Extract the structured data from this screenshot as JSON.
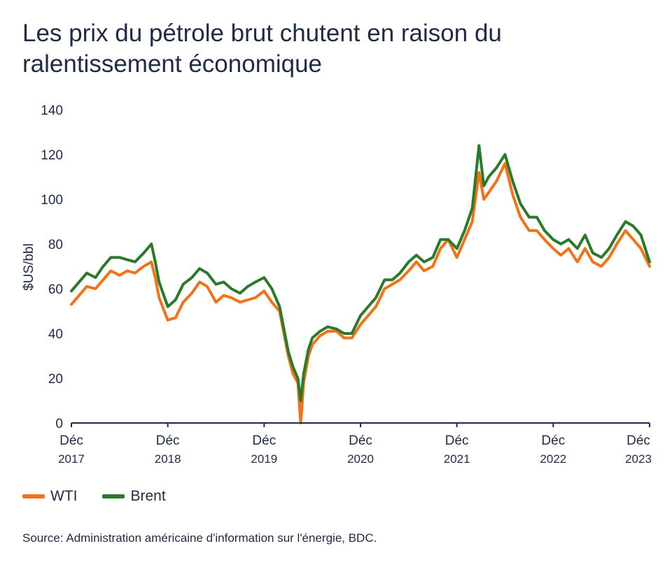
{
  "title": "Les prix du pétrole brut chutent en raison du ralentissement économique",
  "source": "Source: Administration américaine d'information sur l'énergie, BDC.",
  "colors": {
    "wti": "#f47216",
    "brent": "#2b7a2b",
    "axis": "#1f2a44"
  },
  "chart_data": {
    "type": "line",
    "ylabel": "$US/bbl",
    "ylim": [
      0,
      140
    ],
    "yticks": [
      "0",
      "20",
      "40",
      "60",
      "80",
      "100",
      "120",
      "140"
    ],
    "xlim": [
      2017.92,
      2023.92
    ],
    "xticks": [
      {
        "month": "Déc",
        "year": "2017"
      },
      {
        "month": "Déc",
        "year": "2018"
      },
      {
        "month": "Déc",
        "year": "2019"
      },
      {
        "month": "Déc",
        "year": "2020"
      },
      {
        "month": "Déc",
        "year": "2021"
      },
      {
        "month": "Déc",
        "year": "2022"
      },
      {
        "month": "Déc",
        "year": "2023"
      }
    ],
    "legend_position": "bottom-left",
    "series": [
      {
        "name": "WTI",
        "x": [
          2017.92,
          2018.0,
          2018.08,
          2018.17,
          2018.25,
          2018.33,
          2018.42,
          2018.5,
          2018.58,
          2018.67,
          2018.75,
          2018.79,
          2018.83,
          2018.92,
          2019.0,
          2019.08,
          2019.17,
          2019.25,
          2019.33,
          2019.42,
          2019.5,
          2019.58,
          2019.67,
          2019.75,
          2019.83,
          2019.92,
          2020.0,
          2020.08,
          2020.17,
          2020.22,
          2020.27,
          2020.3,
          2020.33,
          2020.38,
          2020.42,
          2020.5,
          2020.58,
          2020.67,
          2020.75,
          2020.83,
          2020.92,
          2021.0,
          2021.08,
          2021.17,
          2021.25,
          2021.33,
          2021.42,
          2021.5,
          2021.58,
          2021.67,
          2021.75,
          2021.83,
          2021.92,
          2022.0,
          2022.08,
          2022.15,
          2022.2,
          2022.25,
          2022.33,
          2022.42,
          2022.5,
          2022.58,
          2022.67,
          2022.75,
          2022.83,
          2022.92,
          2023.0,
          2023.08,
          2023.17,
          2023.25,
          2023.33,
          2023.42,
          2023.5,
          2023.58,
          2023.67,
          2023.75,
          2023.83,
          2023.92
        ],
        "values": [
          53,
          57,
          61,
          60,
          64,
          68,
          66,
          68,
          67,
          70,
          72,
          65,
          56,
          46,
          47,
          54,
          58,
          63,
          61,
          54,
          57,
          56,
          54,
          55,
          56,
          59,
          54,
          50,
          30,
          22,
          18,
          0,
          18,
          30,
          35,
          39,
          41,
          41,
          38,
          38,
          44,
          48,
          52,
          60,
          62,
          64,
          68,
          72,
          68,
          70,
          78,
          82,
          74,
          82,
          90,
          112,
          100,
          103,
          108,
          116,
          102,
          92,
          86,
          86,
          82,
          78,
          75,
          78,
          72,
          78,
          72,
          70,
          74,
          80,
          86,
          82,
          78,
          70
        ]
      },
      {
        "name": "Brent",
        "x": [
          2017.92,
          2018.0,
          2018.08,
          2018.17,
          2018.25,
          2018.33,
          2018.42,
          2018.5,
          2018.58,
          2018.67,
          2018.75,
          2018.79,
          2018.83,
          2018.92,
          2019.0,
          2019.08,
          2019.17,
          2019.25,
          2019.33,
          2019.42,
          2019.5,
          2019.58,
          2019.67,
          2019.75,
          2019.83,
          2019.92,
          2020.0,
          2020.08,
          2020.17,
          2020.22,
          2020.27,
          2020.3,
          2020.33,
          2020.38,
          2020.42,
          2020.5,
          2020.58,
          2020.67,
          2020.75,
          2020.83,
          2020.92,
          2021.0,
          2021.08,
          2021.17,
          2021.25,
          2021.33,
          2021.42,
          2021.5,
          2021.58,
          2021.67,
          2021.75,
          2021.83,
          2021.92,
          2022.0,
          2022.08,
          2022.15,
          2022.2,
          2022.25,
          2022.33,
          2022.42,
          2022.5,
          2022.58,
          2022.67,
          2022.75,
          2022.83,
          2022.92,
          2023.0,
          2023.08,
          2023.17,
          2023.25,
          2023.33,
          2023.42,
          2023.5,
          2023.58,
          2023.67,
          2023.75,
          2023.83,
          2023.92
        ],
        "values": [
          59,
          63,
          67,
          65,
          70,
          74,
          74,
          73,
          72,
          76,
          80,
          72,
          63,
          52,
          55,
          62,
          65,
          69,
          67,
          62,
          63,
          60,
          58,
          61,
          63,
          65,
          60,
          52,
          32,
          25,
          20,
          10,
          22,
          33,
          38,
          41,
          43,
          42,
          40,
          40,
          48,
          52,
          56,
          64,
          64,
          67,
          72,
          75,
          72,
          74,
          82,
          82,
          78,
          86,
          96,
          124,
          106,
          110,
          114,
          120,
          108,
          98,
          92,
          92,
          86,
          82,
          80,
          82,
          78,
          84,
          76,
          74,
          78,
          84,
          90,
          88,
          84,
          72
        ]
      }
    ]
  }
}
